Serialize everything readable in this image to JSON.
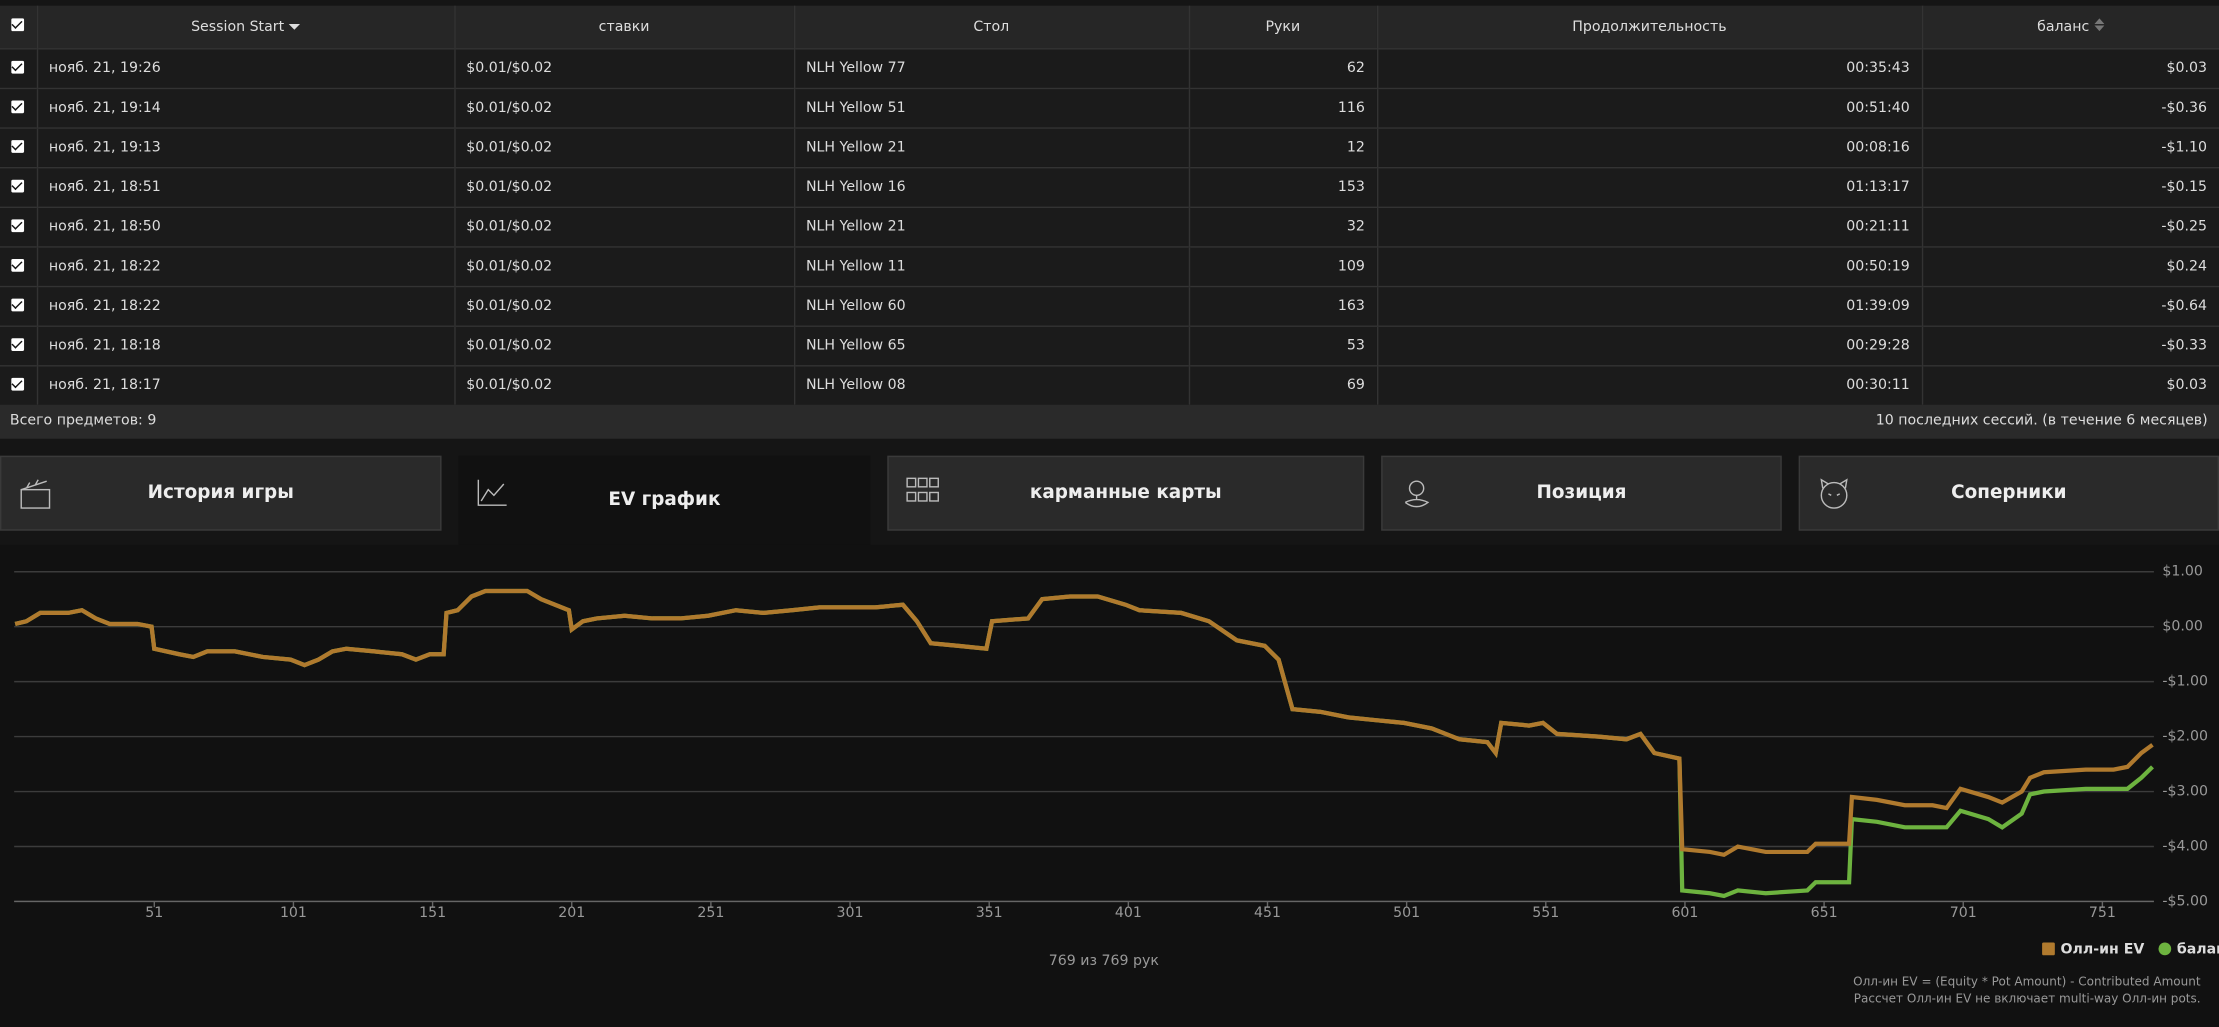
{
  "table": {
    "headers": [
      "Session Start",
      "ставки",
      "Стол",
      "Руки",
      "Продолжительность",
      "баланс"
    ],
    "rows": [
      [
        "нояб. 21, 19:26",
        "$0.01/$0.02",
        "NLH Yellow 77",
        "62",
        "00:35:43",
        "$0.03"
      ],
      [
        "нояб. 21, 19:14",
        "$0.01/$0.02",
        "NLH Yellow 51",
        "116",
        "00:51:40",
        "-$0.36"
      ],
      [
        "нояб. 21, 19:13",
        "$0.01/$0.02",
        "NLH Yellow 21",
        "12",
        "00:08:16",
        "-$1.10"
      ],
      [
        "нояб. 21, 18:51",
        "$0.01/$0.02",
        "NLH Yellow 16",
        "153",
        "01:13:17",
        "-$0.15"
      ],
      [
        "нояб. 21, 18:50",
        "$0.01/$0.02",
        "NLH Yellow 21",
        "32",
        "00:21:11",
        "-$0.25"
      ],
      [
        "нояб. 21, 18:22",
        "$0.01/$0.02",
        "NLH Yellow 11",
        "109",
        "00:50:19",
        "$0.24"
      ],
      [
        "нояб. 21, 18:22",
        "$0.01/$0.02",
        "NLH Yellow 60",
        "163",
        "01:39:09",
        "-$0.64"
      ],
      [
        "нояб. 21, 18:18",
        "$0.01/$0.02",
        "NLH Yellow 65",
        "53",
        "00:29:28",
        "-$0.33"
      ],
      [
        "нояб. 21, 18:17",
        "$0.01/$0.02",
        "NLH Yellow 08",
        "69",
        "00:30:11",
        "$0.03"
      ]
    ],
    "footer_left": "Всего предметов: 9",
    "footer_right": "10 последних сессий. (в течение 6 месяцев)"
  },
  "tabs": [
    "История игры",
    "EV график",
    "карманные карты",
    "Позиция",
    "Соперники"
  ],
  "chart": {
    "type": "line",
    "x": [
      1,
      5,
      10,
      20,
      25,
      30,
      35,
      45,
      50,
      51,
      60,
      65,
      70,
      80,
      90,
      100,
      105,
      110,
      115,
      120,
      130,
      140,
      145,
      150,
      155,
      156,
      160,
      165,
      170,
      180,
      185,
      190,
      200,
      201,
      205,
      210,
      220,
      230,
      240,
      250,
      260,
      270,
      280,
      290,
      300,
      310,
      320,
      325,
      330,
      340,
      350,
      352,
      365,
      370,
      380,
      390,
      400,
      405,
      420,
      430,
      440,
      450,
      455,
      460,
      470,
      480,
      490,
      500,
      510,
      520,
      530,
      533,
      535,
      545,
      550,
      555,
      570,
      580,
      585,
      590,
      599,
      600,
      610,
      615,
      620,
      630,
      645,
      648,
      660,
      661,
      670,
      680,
      690,
      695,
      700,
      710,
      715,
      722,
      725,
      730,
      745,
      755,
      760,
      765,
      769
    ],
    "series": [
      {
        "name": "баланс",
        "color": "#6db33f",
        "values": [
          0.05,
          0.1,
          0.25,
          0.25,
          0.3,
          0.15,
          0.05,
          0.05,
          0,
          -0.4,
          -0.5,
          -0.55,
          -0.45,
          -0.45,
          -0.55,
          -0.6,
          -0.7,
          -0.6,
          -0.45,
          -0.4,
          -0.45,
          -0.5,
          -0.6,
          -0.5,
          -0.5,
          0.25,
          0.3,
          0.55,
          0.65,
          0.65,
          0.65,
          0.5,
          0.3,
          -0.05,
          0.1,
          0.15,
          0.2,
          0.15,
          0.15,
          0.2,
          0.3,
          0.25,
          0.3,
          0.35,
          0.35,
          0.35,
          0.4,
          0.1,
          -0.3,
          -0.35,
          -0.4,
          0.1,
          0.15,
          0.5,
          0.55,
          0.55,
          0.4,
          0.3,
          0.25,
          0.1,
          -0.25,
          -0.35,
          -0.6,
          -1.5,
          -1.55,
          -1.65,
          -1.7,
          -1.75,
          -1.85,
          -2.05,
          -2.1,
          -2.3,
          -1.75,
          -1.8,
          -1.75,
          -1.95,
          -2,
          -2.05,
          -1.95,
          -2.3,
          -2.4,
          -4.8,
          -4.85,
          -4.9,
          -4.8,
          -4.85,
          -4.8,
          -4.65,
          -4.65,
          -3.5,
          -3.55,
          -3.65,
          -3.65,
          -3.65,
          -3.35,
          -3.5,
          -3.65,
          -3.4,
          -3.05,
          -3,
          -2.95,
          -2.95,
          -2.95,
          -2.75,
          -2.55
        ]
      },
      {
        "name": "Олл-ин EV",
        "color": "#b07a2e",
        "values": [
          0.05,
          0.1,
          0.25,
          0.25,
          0.3,
          0.15,
          0.05,
          0.05,
          0,
          -0.4,
          -0.5,
          -0.55,
          -0.45,
          -0.45,
          -0.55,
          -0.6,
          -0.7,
          -0.6,
          -0.45,
          -0.4,
          -0.45,
          -0.5,
          -0.6,
          -0.5,
          -0.5,
          0.25,
          0.3,
          0.55,
          0.65,
          0.65,
          0.65,
          0.5,
          0.3,
          -0.05,
          0.1,
          0.15,
          0.2,
          0.15,
          0.15,
          0.2,
          0.3,
          0.25,
          0.3,
          0.35,
          0.35,
          0.35,
          0.4,
          0.1,
          -0.3,
          -0.35,
          -0.4,
          0.1,
          0.15,
          0.5,
          0.55,
          0.55,
          0.4,
          0.3,
          0.25,
          0.1,
          -0.25,
          -0.35,
          -0.6,
          -1.5,
          -1.55,
          -1.65,
          -1.7,
          -1.75,
          -1.85,
          -2.05,
          -2.1,
          -2.3,
          -1.75,
          -1.8,
          -1.75,
          -1.95,
          -2,
          -2.05,
          -1.95,
          -2.3,
          -2.4,
          -4.05,
          -4.1,
          -4.15,
          -4,
          -4.1,
          -4.1,
          -3.95,
          -3.95,
          -3.1,
          -3.15,
          -3.25,
          -3.25,
          -3.3,
          -2.95,
          -3.1,
          -3.2,
          -3,
          -2.75,
          -2.65,
          -2.6,
          -2.6,
          -2.55,
          -2.3,
          -2.15
        ]
      }
    ],
    "xlim": [
      1,
      769
    ],
    "ylim": [
      -5,
      1
    ],
    "xticks": [
      51,
      101,
      151,
      201,
      251,
      301,
      351,
      401,
      451,
      501,
      551,
      601,
      651,
      701,
      751
    ],
    "yticks": [
      {
        "value": 1,
        "label": "$1.00"
      },
      {
        "value": 0,
        "label": "$0.00"
      },
      {
        "value": -1,
        "label": "-$1.00"
      },
      {
        "value": -2,
        "label": "-$2.00"
      },
      {
        "value": -3,
        "label": "-$3.00"
      },
      {
        "value": -4,
        "label": "-$4.00"
      },
      {
        "value": -5,
        "label": "-$5.00"
      }
    ],
    "grid": true,
    "legend": "bottom-right",
    "caption": "769 из 769 рук",
    "notes": [
      "Олл-ин EV = (Equity * Pot Amount) - Contributed Amount",
      "Рассчет Олл-ин EV не включает multi-way Олл-ин pots."
    ]
  }
}
